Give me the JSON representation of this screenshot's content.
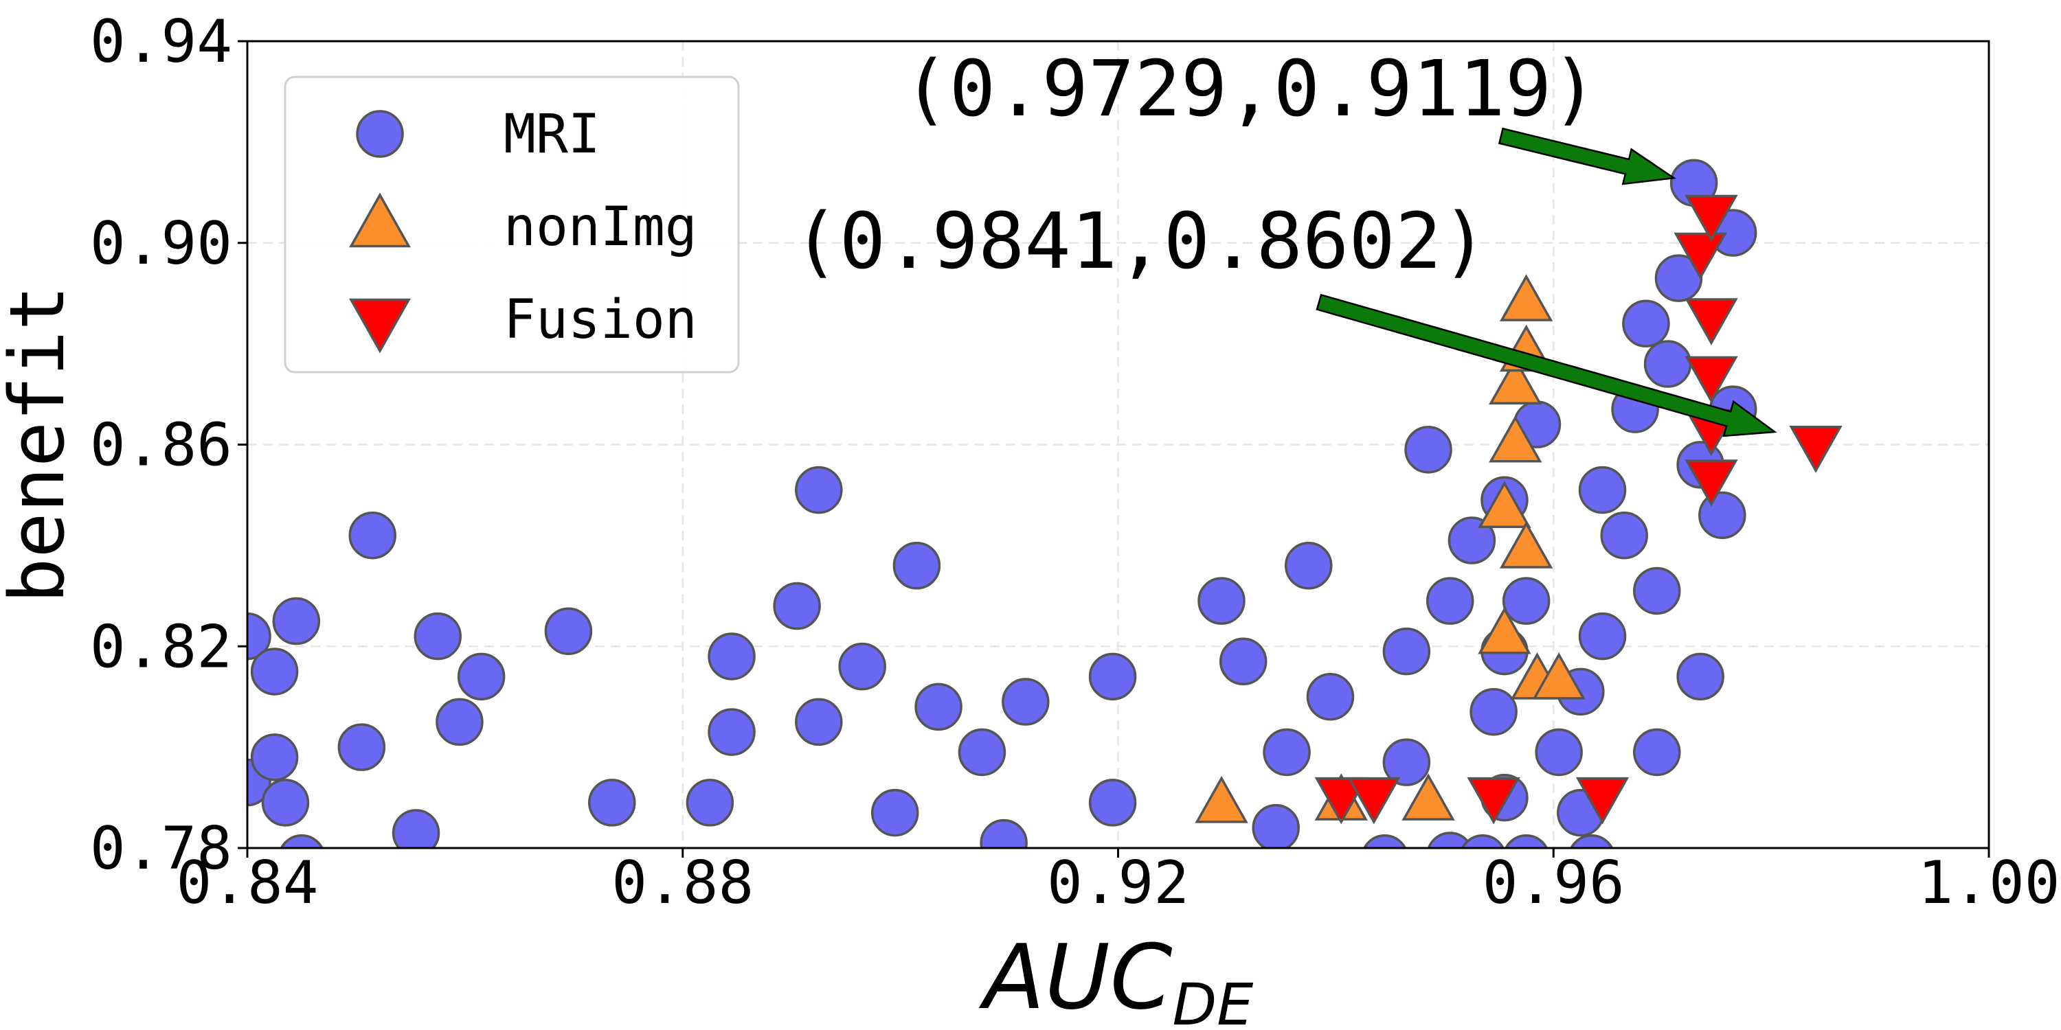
{
  "chart_data": {
    "type": "scatter",
    "title": "",
    "xlabel": "AUC",
    "xlabel_sub": "DE",
    "ylabel": "benefit",
    "xlim": [
      0.84,
      1.0
    ],
    "ylim": [
      0.78,
      0.94
    ],
    "x_ticks": [
      "0.84",
      "0.88",
      "0.92",
      "0.96",
      "1.00"
    ],
    "y_ticks": [
      "0.78",
      "0.82",
      "0.86",
      "0.90",
      "0.94"
    ],
    "grid": true,
    "legend_position": "upper-left",
    "series": [
      {
        "name": "MRI",
        "marker": "circle",
        "color": "#6a67f2",
        "points": [
          [
            0.84,
            0.822
          ],
          [
            0.84,
            0.793
          ],
          [
            0.8425,
            0.815
          ],
          [
            0.8445,
            0.825
          ],
          [
            0.8425,
            0.798
          ],
          [
            0.8435,
            0.789
          ],
          [
            0.845,
            0.778
          ],
          [
            0.8505,
            0.8
          ],
          [
            0.8515,
            0.842
          ],
          [
            0.8555,
            0.783
          ],
          [
            0.8575,
            0.822
          ],
          [
            0.8595,
            0.805
          ],
          [
            0.8615,
            0.814
          ],
          [
            0.8695,
            0.823
          ],
          [
            0.8735,
            0.789
          ],
          [
            0.8825,
            0.789
          ],
          [
            0.8845,
            0.818
          ],
          [
            0.8845,
            0.803
          ],
          [
            0.8905,
            0.828
          ],
          [
            0.8925,
            0.805
          ],
          [
            0.8925,
            0.851
          ],
          [
            0.8965,
            0.816
          ],
          [
            0.8995,
            0.787
          ],
          [
            0.9015,
            0.836
          ],
          [
            0.9035,
            0.808
          ],
          [
            0.9075,
            0.799
          ],
          [
            0.9095,
            0.781
          ],
          [
            0.9115,
            0.809
          ],
          [
            0.9195,
            0.814
          ],
          [
            0.9195,
            0.789
          ],
          [
            0.9295,
            0.829
          ],
          [
            0.9315,
            0.817
          ],
          [
            0.9345,
            0.784
          ],
          [
            0.9355,
            0.799
          ],
          [
            0.9375,
            0.836
          ],
          [
            0.9395,
            0.81
          ],
          [
            0.9465,
            0.819
          ],
          [
            0.9465,
            0.797
          ],
          [
            0.9485,
            0.859
          ],
          [
            0.9505,
            0.829
          ],
          [
            0.9525,
            0.841
          ],
          [
            0.9545,
            0.807
          ],
          [
            0.9555,
            0.849
          ],
          [
            0.9555,
            0.819
          ],
          [
            0.9555,
            0.79
          ],
          [
            0.9575,
            0.778
          ],
          [
            0.9575,
            0.829
          ],
          [
            0.9585,
            0.864
          ],
          [
            0.9605,
            0.799
          ],
          [
            0.9625,
            0.787
          ],
          [
            0.9625,
            0.811
          ],
          [
            0.9635,
            0.778
          ],
          [
            0.9645,
            0.822
          ],
          [
            0.9645,
            0.851
          ],
          [
            0.9665,
            0.842
          ],
          [
            0.9675,
            0.867
          ],
          [
            0.9685,
            0.884
          ],
          [
            0.9695,
            0.831
          ],
          [
            0.9695,
            0.799
          ],
          [
            0.9705,
            0.876
          ],
          [
            0.9715,
            0.893
          ],
          [
            0.9729,
            0.9119
          ],
          [
            0.9735,
            0.856
          ],
          [
            0.9735,
            0.814
          ],
          [
            0.9755,
            0.846
          ],
          [
            0.9765,
            0.867
          ],
          [
            0.9765,
            0.902
          ],
          [
            0.9505,
            0.7785
          ],
          [
            0.9535,
            0.778
          ],
          [
            0.9445,
            0.778
          ]
        ]
      },
      {
        "name": "nonImg",
        "marker": "triangle-up",
        "color": "#fb8e2d",
        "points": [
          [
            0.9295,
            0.7885
          ],
          [
            0.9405,
            0.789
          ],
          [
            0.9485,
            0.789
          ],
          [
            0.9555,
            0.822
          ],
          [
            0.9555,
            0.847
          ],
          [
            0.9565,
            0.86
          ],
          [
            0.9565,
            0.8715
          ],
          [
            0.9575,
            0.839
          ],
          [
            0.9575,
            0.878
          ],
          [
            0.9575,
            0.888
          ],
          [
            0.9585,
            0.813
          ],
          [
            0.9605,
            0.813
          ]
        ]
      },
      {
        "name": "Fusion",
        "marker": "triangle-down",
        "color": "#ff0000",
        "points": [
          [
            0.9405,
            0.7905
          ],
          [
            0.9435,
            0.7905
          ],
          [
            0.9545,
            0.7905
          ],
          [
            0.9645,
            0.7905
          ],
          [
            0.9735,
            0.8985
          ],
          [
            0.9745,
            0.8535
          ],
          [
            0.9745,
            0.8635
          ],
          [
            0.9745,
            0.874
          ],
          [
            0.9745,
            0.8855
          ],
          [
            0.9745,
            0.906
          ],
          [
            0.9841,
            0.8602
          ]
        ]
      }
    ],
    "annotations": [
      {
        "text": "(0.9729,0.9119)",
        "point": [
          0.9729,
          0.9119
        ],
        "arrow_color": "#0b7a0b"
      },
      {
        "text": "(0.9841,0.8602)",
        "point": [
          0.9841,
          0.8602
        ],
        "arrow_color": "#0b7a0b"
      }
    ]
  }
}
